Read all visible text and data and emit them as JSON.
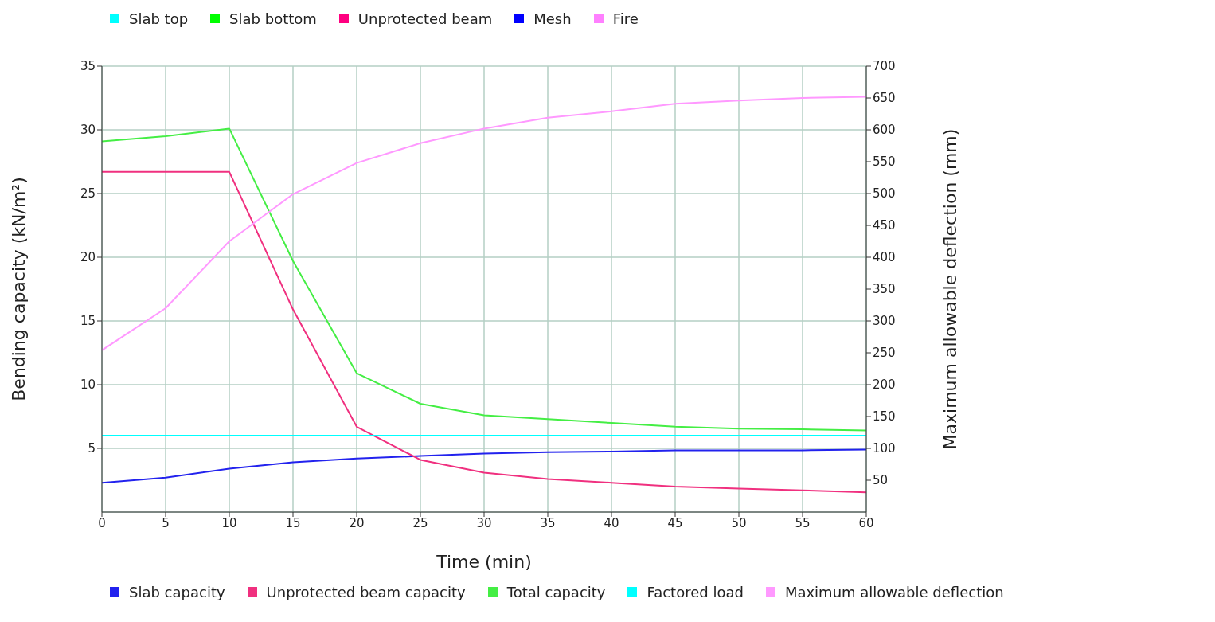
{
  "chart_data": {
    "type": "line",
    "xlabel": "Time (min)",
    "ylabel": "Bending capacity (kN/m²)",
    "y2label": "Maximum allowable deflection (mm)",
    "x": [
      0,
      5,
      10,
      15,
      20,
      25,
      30,
      35,
      40,
      45,
      50,
      55,
      60
    ],
    "xlim": [
      0,
      60
    ],
    "xticks": [
      0,
      5,
      10,
      15,
      20,
      25,
      30,
      35,
      40,
      45,
      50,
      55,
      60
    ],
    "ylim": [
      0,
      35
    ],
    "yticks": [
      5,
      10,
      15,
      20,
      25,
      30,
      35
    ],
    "y2lim": [
      0,
      700
    ],
    "y2ticks": [
      50,
      100,
      150,
      200,
      250,
      300,
      350,
      400,
      450,
      500,
      550,
      600,
      650,
      700
    ],
    "grid": true,
    "legend": "bottom",
    "marker": "none",
    "line_style": "solid",
    "series": [
      {
        "name": "Slab top",
        "color": "#00ffff",
        "values": [
          null,
          null,
          null,
          null,
          null,
          null,
          null,
          null,
          null,
          null,
          null,
          null,
          null
        ]
      },
      {
        "name": "Slab bottom",
        "color": "#00ff00",
        "values": [
          null,
          null,
          null,
          null,
          null,
          null,
          null,
          null,
          null,
          null,
          null,
          null,
          null
        ]
      },
      {
        "name": "Unprotected beam",
        "color": "#ff0080",
        "values": [
          null,
          null,
          null,
          null,
          null,
          null,
          null,
          null,
          null,
          null,
          null,
          null,
          null
        ]
      },
      {
        "name": "Mesh",
        "color": "#0000ff",
        "values": [
          null,
          null,
          null,
          null,
          null,
          null,
          null,
          null,
          null,
          null,
          null,
          null,
          null
        ]
      },
      {
        "name": "Fire",
        "color": "#ff80ff",
        "values": [
          null,
          null,
          null,
          null,
          null,
          null,
          null,
          null,
          null,
          null,
          null,
          null,
          null
        ]
      },
      {
        "name": "Slab capacity",
        "color": "#2222ee",
        "values": [
          2.3,
          2.7,
          3.4,
          3.9,
          4.2,
          4.4,
          4.6,
          4.7,
          4.75,
          4.85,
          4.85,
          4.85,
          4.9
        ]
      },
      {
        "name": "Unprotected beam capacity",
        "color": "#f0307f",
        "values": [
          26.7,
          26.7,
          26.7,
          15.9,
          6.7,
          4.1,
          3.1,
          2.6,
          2.3,
          2.0,
          1.85,
          1.7,
          1.55
        ]
      },
      {
        "name": "Total capacity",
        "color": "#44ee44",
        "values": [
          29.1,
          29.5,
          30.1,
          19.7,
          10.9,
          8.5,
          7.6,
          7.3,
          7.0,
          6.7,
          6.55,
          6.5,
          6.4
        ]
      },
      {
        "name": "Factored load",
        "color": "#00ffff",
        "values": [
          6,
          6,
          6,
          6,
          6,
          6,
          6,
          6,
          6,
          6,
          6,
          6,
          6
        ]
      },
      {
        "name": "Maximum allowable deflection",
        "color": "#ff99ff",
        "axis": "y2",
        "values": [
          254,
          320,
          425,
          499,
          548,
          579,
          602,
          619,
          629,
          641,
          646,
          650,
          652
        ]
      }
    ]
  }
}
